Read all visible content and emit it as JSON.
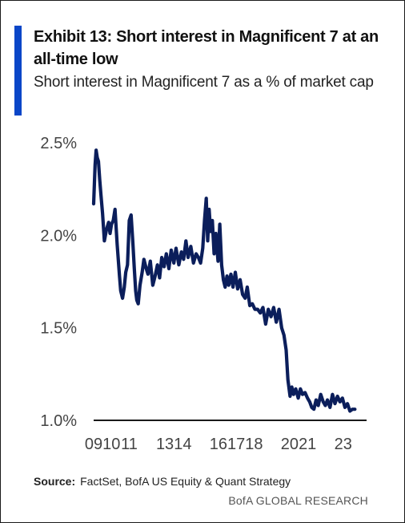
{
  "header": {
    "title": "Exhibit 13: Short interest in Magnificent 7 at an all-time low",
    "subtitle": "Short interest in Magnificent 7 as a % of market cap"
  },
  "source": {
    "label": "Source:",
    "text": "FactSet, BofA US Equity & Quant Strategy"
  },
  "footer": {
    "brand": "BofA GLOBAL RESEARCH"
  },
  "colors": {
    "accent": "#0a46c8",
    "line": "#0b1e5b",
    "axis": "#1a1a1a"
  },
  "chart_data": {
    "type": "line",
    "title": "Exhibit 13: Short interest in Magnificent 7 at an all-time low",
    "subtitle": "Short interest in Magnificent 7 as a % of market cap",
    "xlabel": "",
    "ylabel": "",
    "ylim": [
      1.0,
      2.5
    ],
    "xlim": [
      2009.0,
      2024.0
    ],
    "y_ticks": [
      1.0,
      1.5,
      2.0,
      2.5
    ],
    "y_tick_labels": [
      "1.0%",
      "1.5%",
      "2.0%",
      "2.5%"
    ],
    "x_ticks": [
      2009,
      2010,
      2011,
      2013,
      2014,
      2016,
      2017,
      2018,
      2020,
      2021,
      2023
    ],
    "x_tick_labels": [
      "09",
      "10",
      "11",
      "13",
      "14",
      "16",
      "17",
      "18",
      "20",
      "21",
      "23"
    ],
    "grid": false,
    "series": [
      {
        "x": [
          2009.0,
          2009.08,
          2009.14,
          2009.2,
          2009.27,
          2009.34,
          2009.41,
          2009.5,
          2009.6,
          2009.72,
          2009.84,
          2009.92,
          2010.0,
          2010.1,
          2010.2,
          2010.32,
          2010.45,
          2010.52,
          2010.62,
          2010.72,
          2010.8,
          2010.9,
          2011.0,
          2011.1,
          2011.2,
          2011.28,
          2011.36,
          2011.42,
          2011.5,
          2011.6,
          2011.72,
          2011.82,
          2011.95,
          2012.05,
          2012.18,
          2012.32,
          2012.45,
          2012.58,
          2012.7,
          2012.82,
          2012.95,
          2013.08,
          2013.22,
          2013.35,
          2013.5,
          2013.62,
          2013.78,
          2013.92,
          2014.05,
          2014.18,
          2014.3,
          2014.45,
          2014.6,
          2014.75,
          2014.88,
          2015.0,
          2015.12,
          2015.22,
          2015.32,
          2015.4,
          2015.48,
          2015.56,
          2015.66,
          2015.76,
          2015.86,
          2015.98,
          2016.08,
          2016.18,
          2016.28,
          2016.38,
          2016.48,
          2016.58,
          2016.7,
          2016.82,
          2016.95,
          2017.08,
          2017.22,
          2017.36,
          2017.5,
          2017.62,
          2017.76,
          2017.9,
          2018.05,
          2018.2,
          2018.35,
          2018.5,
          2018.65,
          2018.8,
          2018.95,
          2019.1,
          2019.25,
          2019.4,
          2019.55,
          2019.68,
          2019.8,
          2019.9,
          2020.02,
          2020.12,
          2020.22,
          2020.34,
          2020.48,
          2020.6,
          2020.72,
          2020.86,
          2021.0,
          2021.12,
          2021.24,
          2021.36,
          2021.48,
          2021.6,
          2021.74,
          2021.88,
          2022.0,
          2022.12,
          2022.26,
          2022.4,
          2022.54,
          2022.68,
          2022.82,
          2022.96,
          2023.1,
          2023.24,
          2023.38,
          2023.52,
          2023.66
        ],
        "values": [
          2.17,
          2.38,
          2.46,
          2.42,
          2.4,
          2.3,
          2.22,
          2.12,
          1.97,
          2.03,
          2.07,
          2.01,
          2.06,
          2.08,
          2.14,
          1.95,
          1.78,
          1.7,
          1.66,
          1.72,
          1.8,
          1.84,
          2.08,
          2.11,
          1.96,
          1.82,
          1.7,
          1.65,
          1.63,
          1.73,
          1.8,
          1.87,
          1.82,
          1.79,
          1.86,
          1.73,
          1.78,
          1.84,
          1.77,
          1.88,
          1.83,
          1.9,
          1.82,
          1.92,
          1.85,
          1.93,
          1.84,
          1.91,
          1.87,
          1.97,
          1.88,
          1.94,
          1.85,
          1.9,
          1.88,
          1.85,
          1.93,
          2.08,
          2.2,
          1.97,
          2.14,
          2.02,
          2.08,
          1.9,
          2.01,
          1.86,
          2.06,
          1.84,
          1.76,
          1.72,
          1.78,
          1.73,
          1.79,
          1.72,
          1.8,
          1.71,
          1.76,
          1.68,
          1.66,
          1.72,
          1.62,
          1.63,
          1.6,
          1.6,
          1.58,
          1.61,
          1.52,
          1.6,
          1.56,
          1.61,
          1.53,
          1.6,
          1.5,
          1.46,
          1.38,
          1.22,
          1.13,
          1.18,
          1.14,
          1.17,
          1.12,
          1.17,
          1.14,
          1.15,
          1.12,
          1.1,
          1.07,
          1.06,
          1.11,
          1.08,
          1.14,
          1.1,
          1.08,
          1.11,
          1.07,
          1.14,
          1.09,
          1.13,
          1.1,
          1.12,
          1.07,
          1.09,
          1.05,
          1.06,
          1.06
        ]
      }
    ]
  }
}
